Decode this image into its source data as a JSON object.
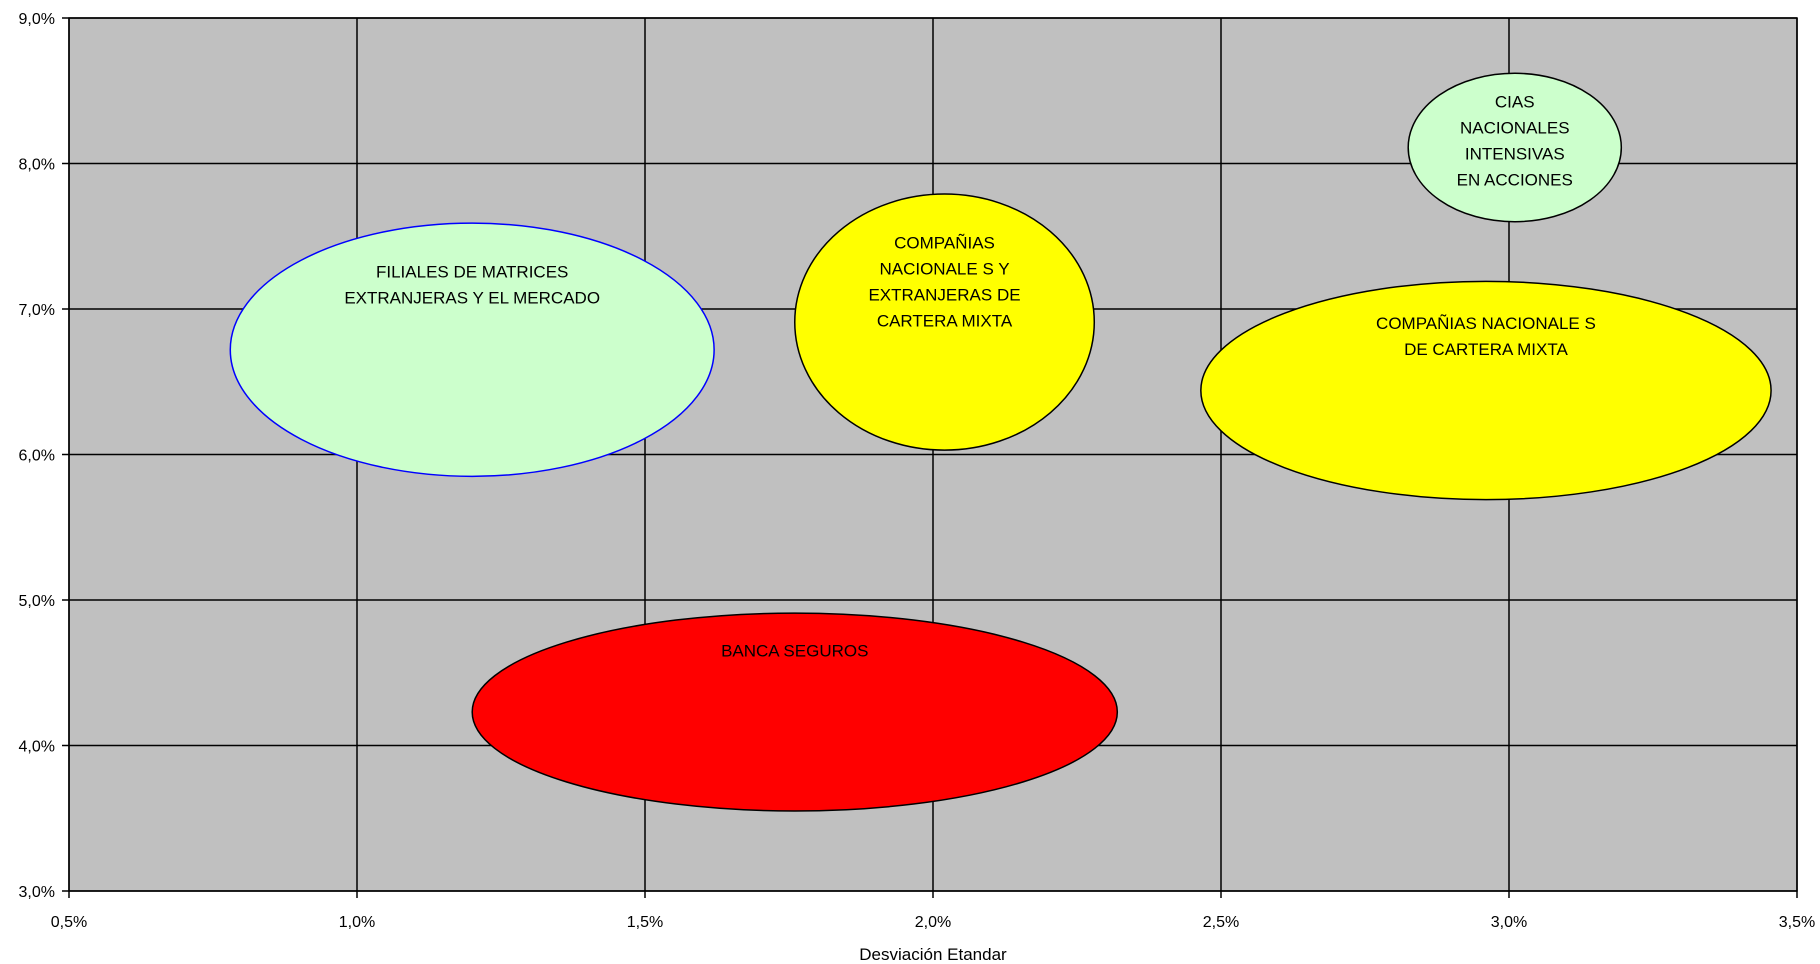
{
  "chart_data": {
    "type": "scatter",
    "title": "",
    "xlabel": "Desviación Etandar",
    "ylabel": "",
    "xlim": [
      0.005,
      0.035
    ],
    "ylim": [
      0.03,
      0.09
    ],
    "x_ticks": [
      0.005,
      0.01,
      0.015,
      0.02,
      0.025,
      0.03,
      0.035
    ],
    "y_ticks": [
      0.03,
      0.04,
      0.05,
      0.06,
      0.07,
      0.08,
      0.09
    ],
    "x_tick_labels": [
      "0,5%",
      "1,0%",
      "1,5%",
      "2,0%",
      "2,5%",
      "3,0%",
      "3,5%"
    ],
    "y_tick_labels": [
      "3,0%",
      "4,0%",
      "5,0%",
      "6,0%",
      "7,0%",
      "8,0%",
      "9,0%"
    ],
    "grid": true,
    "plot_background": "#c0c0c0",
    "series": [
      {
        "name": "FILIALES DE MATRICES EXTRANJERAS Y EL MERCADO",
        "label_lines": [
          "FILIALES DE MATRICES",
          "EXTRANJERAS Y EL MERCADO"
        ],
        "x": 0.012,
        "y": 0.0672,
        "x_halfwidth": 0.0042,
        "y_halfheight": 0.0087,
        "fill": "#ccffcc",
        "stroke": "#0000ff"
      },
      {
        "name": "COMPAÑIAS NACIONALE S Y EXTRANJERAS DE CARTERA MIXTA",
        "label_lines": [
          "COMPAÑIAS",
          "NACIONALE S Y",
          "EXTRANJERAS DE",
          "CARTERA MIXTA"
        ],
        "x": 0.0202,
        "y": 0.0691,
        "x_halfwidth": 0.0026,
        "y_halfheight": 0.0088,
        "fill": "#ffff00",
        "stroke": "#000000"
      },
      {
        "name": "CIAS NACIONALES INTENSIVAS EN ACCIONES",
        "label_lines": [
          "CIAS",
          "NACIONALES",
          "INTENSIVAS",
          "EN ACCIONES"
        ],
        "x": 0.0301,
        "y": 0.0811,
        "x_halfwidth": 0.00185,
        "y_halfheight": 0.0051,
        "fill": "#ccffcc",
        "stroke": "#000000"
      },
      {
        "name": "COMPAÑIAS NACIONALE S DE CARTERA MIXTA",
        "label_lines": [
          "COMPAÑIAS NACIONALE S",
          "DE CARTERA MIXTA"
        ],
        "x": 0.0296,
        "y": 0.0644,
        "x_halfwidth": 0.00495,
        "y_halfheight": 0.0075,
        "fill": "#ffff00",
        "stroke": "#000000"
      },
      {
        "name": "BANCA SEGUROS",
        "label_lines": [
          "BANCA SEGUROS"
        ],
        "x": 0.0176,
        "y": 0.0423,
        "x_halfwidth": 0.0056,
        "y_halfheight": 0.0068,
        "fill": "#ff0000",
        "stroke": "#000000"
      }
    ]
  }
}
